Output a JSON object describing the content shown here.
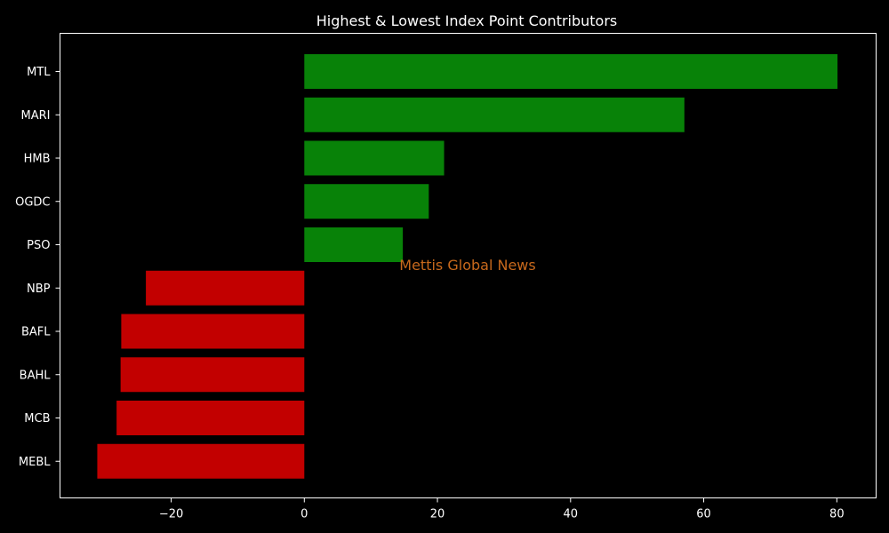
{
  "chart_data": {
    "type": "bar",
    "orientation": "horizontal",
    "title": "Highest & Lowest Index Point Contributors",
    "xlabel": "",
    "ylabel": "",
    "watermark": "Mettis Global News",
    "categories": [
      "MTL",
      "MARI",
      "HMB",
      "OGDC",
      "PSO",
      "NBP",
      "BAFL",
      "BAHL",
      "MCB",
      "MEBL"
    ],
    "values": [
      80.1,
      57.1,
      21.0,
      18.7,
      14.8,
      -23.8,
      -27.5,
      -27.6,
      -28.2,
      -31.1
    ],
    "xlim": [
      -36.7,
      85.9
    ],
    "xticks": [
      -20,
      0,
      20,
      40,
      60,
      80
    ],
    "xtick_labels": [
      "−20",
      "0",
      "20",
      "40",
      "60",
      "80"
    ],
    "grid": false,
    "legend": "none",
    "colors": {
      "background": "#000000",
      "positive": "#088208",
      "negative": "#c20000",
      "axes": "#ffffff",
      "text": "#ffffff",
      "watermark": "#c8691c"
    }
  }
}
